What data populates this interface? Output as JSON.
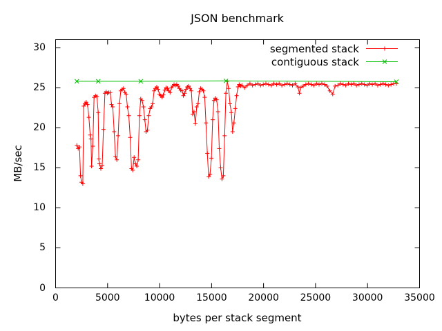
{
  "figure": {
    "background": "#ffffff",
    "border_color": "#000000",
    "text_color": "#000000"
  },
  "chart_data": {
    "type": "line",
    "title": "JSON benchmark",
    "xlabel": "bytes per stack segment",
    "ylabel": "MB/sec",
    "xlim": [
      0,
      35000
    ],
    "ylim": [
      0,
      31
    ],
    "x_ticks": [
      0,
      5000,
      10000,
      15000,
      20000,
      25000,
      30000,
      35000
    ],
    "y_ticks": [
      0,
      5,
      10,
      15,
      20,
      25,
      30
    ],
    "grid": false,
    "legend_position": "top-right-inside",
    "series": [
      {
        "name": "segmented stack",
        "color": "#ff0000",
        "marker": "plus",
        "points": [
          [
            2048,
            17.8
          ],
          [
            2170,
            17.4
          ],
          [
            2300,
            17.6
          ],
          [
            2400,
            14.0
          ],
          [
            2500,
            13.2
          ],
          [
            2620,
            13.0
          ],
          [
            2700,
            22.7
          ],
          [
            2820,
            23.0
          ],
          [
            2940,
            23.2
          ],
          [
            3070,
            22.9
          ],
          [
            3200,
            21.3
          ],
          [
            3330,
            19.1
          ],
          [
            3400,
            18.6
          ],
          [
            3460,
            15.2
          ],
          [
            3580,
            17.7
          ],
          [
            3700,
            23.8
          ],
          [
            3840,
            24.0
          ],
          [
            3970,
            23.9
          ],
          [
            4100,
            21.9
          ],
          [
            4160,
            16.1
          ],
          [
            4220,
            15.5
          ],
          [
            4350,
            14.9
          ],
          [
            4480,
            15.3
          ],
          [
            4600,
            19.8
          ],
          [
            4740,
            24.3
          ],
          [
            4860,
            24.5
          ],
          [
            4990,
            24.3
          ],
          [
            5120,
            24.4
          ],
          [
            5250,
            24.4
          ],
          [
            5380,
            22.9
          ],
          [
            5500,
            22.6
          ],
          [
            5630,
            19.5
          ],
          [
            5760,
            16.4
          ],
          [
            5890,
            16.0
          ],
          [
            6020,
            19.0
          ],
          [
            6140,
            23.0
          ],
          [
            6270,
            24.6
          ],
          [
            6400,
            24.8
          ],
          [
            6530,
            24.9
          ],
          [
            6660,
            24.4
          ],
          [
            6790,
            24.2
          ],
          [
            6910,
            22.6
          ],
          [
            7040,
            21.5
          ],
          [
            7170,
            18.8
          ],
          [
            7300,
            14.9
          ],
          [
            7420,
            14.7
          ],
          [
            7550,
            16.3
          ],
          [
            7680,
            15.5
          ],
          [
            7810,
            15.2
          ],
          [
            7940,
            16.0
          ],
          [
            8060,
            21.5
          ],
          [
            8190,
            23.6
          ],
          [
            8320,
            23.4
          ],
          [
            8450,
            22.6
          ],
          [
            8580,
            21.0
          ],
          [
            8700,
            19.5
          ],
          [
            8830,
            19.7
          ],
          [
            8960,
            21.5
          ],
          [
            9090,
            22.4
          ],
          [
            9220,
            22.6
          ],
          [
            9340,
            23.0
          ],
          [
            9470,
            24.6
          ],
          [
            9600,
            24.9
          ],
          [
            9730,
            25.1
          ],
          [
            9860,
            24.8
          ],
          [
            9980,
            24.2
          ],
          [
            10110,
            24.0
          ],
          [
            10240,
            23.8
          ],
          [
            10370,
            24.1
          ],
          [
            10500,
            24.7
          ],
          [
            10620,
            25.0
          ],
          [
            10750,
            24.9
          ],
          [
            10880,
            24.6
          ],
          [
            11010,
            24.4
          ],
          [
            11140,
            25.0
          ],
          [
            11260,
            25.2
          ],
          [
            11390,
            25.4
          ],
          [
            11520,
            25.3
          ],
          [
            11650,
            25.4
          ],
          [
            11780,
            25.2
          ],
          [
            11900,
            24.9
          ],
          [
            12030,
            24.7
          ],
          [
            12160,
            24.6
          ],
          [
            12290,
            24.0
          ],
          [
            12420,
            24.3
          ],
          [
            12540,
            24.8
          ],
          [
            12670,
            25.1
          ],
          [
            12800,
            25.2
          ],
          [
            12930,
            24.9
          ],
          [
            13060,
            24.6
          ],
          [
            13180,
            21.7
          ],
          [
            13310,
            22.0
          ],
          [
            13440,
            20.5
          ],
          [
            13570,
            22.6
          ],
          [
            13700,
            23.0
          ],
          [
            13820,
            24.5
          ],
          [
            13950,
            24.9
          ],
          [
            14080,
            24.8
          ],
          [
            14210,
            24.6
          ],
          [
            14340,
            23.8
          ],
          [
            14460,
            20.6
          ],
          [
            14590,
            16.8
          ],
          [
            14720,
            13.9
          ],
          [
            14850,
            14.2
          ],
          [
            14980,
            16.2
          ],
          [
            15100,
            21.0
          ],
          [
            15230,
            23.4
          ],
          [
            15360,
            23.7
          ],
          [
            15490,
            23.5
          ],
          [
            15620,
            22.0
          ],
          [
            15740,
            17.4
          ],
          [
            15870,
            15.0
          ],
          [
            16000,
            13.6
          ],
          [
            16130,
            14.0
          ],
          [
            16260,
            19.0
          ],
          [
            16380,
            24.3
          ],
          [
            16510,
            25.8
          ],
          [
            16640,
            24.9
          ],
          [
            16770,
            23.0
          ],
          [
            16900,
            21.9
          ],
          [
            17020,
            19.5
          ],
          [
            17150,
            20.6
          ],
          [
            17280,
            22.4
          ],
          [
            17410,
            24.0
          ],
          [
            17540,
            25.1
          ],
          [
            17660,
            25.4
          ],
          [
            17790,
            25.2
          ],
          [
            17920,
            25.3
          ],
          [
            18180,
            25.0
          ],
          [
            18430,
            25.3
          ],
          [
            18690,
            25.5
          ],
          [
            18940,
            25.3
          ],
          [
            19200,
            25.4
          ],
          [
            19460,
            25.5
          ],
          [
            19710,
            25.3
          ],
          [
            19970,
            25.4
          ],
          [
            20220,
            25.5
          ],
          [
            20480,
            25.4
          ],
          [
            20740,
            25.3
          ],
          [
            20990,
            25.5
          ],
          [
            21250,
            25.4
          ],
          [
            21500,
            25.5
          ],
          [
            21760,
            25.3
          ],
          [
            22020,
            25.4
          ],
          [
            22270,
            25.5
          ],
          [
            22530,
            25.4
          ],
          [
            22780,
            25.3
          ],
          [
            23040,
            25.5
          ],
          [
            23300,
            25.1
          ],
          [
            23450,
            24.3
          ],
          [
            23550,
            25.0
          ],
          [
            23810,
            25.2
          ],
          [
            24060,
            25.4
          ],
          [
            24320,
            25.5
          ],
          [
            24580,
            25.4
          ],
          [
            24830,
            25.3
          ],
          [
            25090,
            25.5
          ],
          [
            25340,
            25.4
          ],
          [
            25600,
            25.5
          ],
          [
            25860,
            25.4
          ],
          [
            26110,
            25.2
          ],
          [
            26370,
            24.6
          ],
          [
            26650,
            24.2
          ],
          [
            26880,
            25.2
          ],
          [
            27140,
            25.3
          ],
          [
            27390,
            25.5
          ],
          [
            27650,
            25.4
          ],
          [
            27900,
            25.3
          ],
          [
            28160,
            25.5
          ],
          [
            28420,
            25.4
          ],
          [
            28670,
            25.5
          ],
          [
            28930,
            25.3
          ],
          [
            29180,
            25.4
          ],
          [
            29440,
            25.5
          ],
          [
            29700,
            25.4
          ],
          [
            29950,
            25.3
          ],
          [
            30210,
            25.5
          ],
          [
            30460,
            25.4
          ],
          [
            30720,
            25.5
          ],
          [
            30980,
            25.3
          ],
          [
            31230,
            25.4
          ],
          [
            31490,
            25.5
          ],
          [
            31740,
            25.4
          ],
          [
            32000,
            25.3
          ],
          [
            32260,
            25.4
          ],
          [
            32510,
            25.5
          ],
          [
            32768,
            25.5
          ]
        ]
      },
      {
        "name": "contiguous stack",
        "color": "#00c000",
        "marker": "x",
        "points": [
          [
            2048,
            25.8
          ],
          [
            4096,
            25.8
          ],
          [
            8192,
            25.8
          ],
          [
            16384,
            25.85
          ],
          [
            32768,
            25.75
          ]
        ]
      }
    ]
  }
}
